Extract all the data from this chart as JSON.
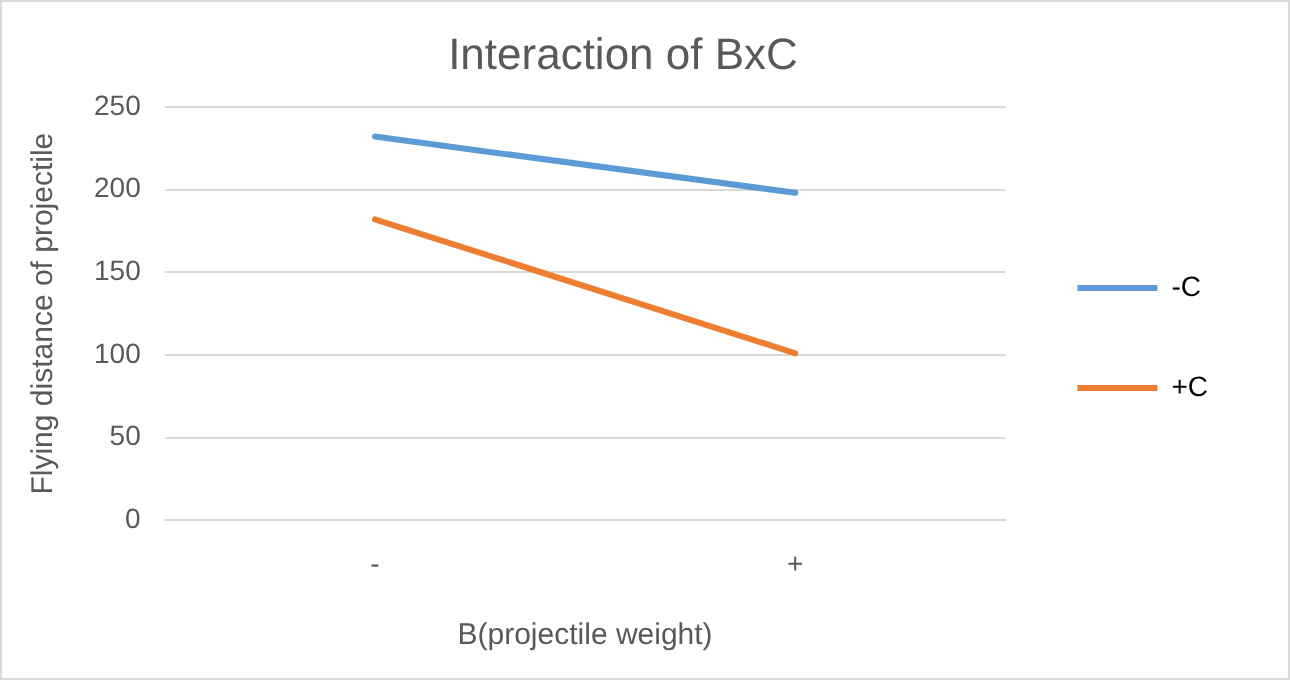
{
  "chart_data": {
    "type": "line",
    "title": "Interaction of BxC",
    "xlabel": "B(projectile weight)",
    "ylabel": "Flying distance of projectile",
    "categories": [
      "-",
      "+"
    ],
    "series": [
      {
        "name": "-C",
        "color": "#5b9bd5",
        "values": [
          232,
          198
        ]
      },
      {
        "name": "+C",
        "color": "#ed7d31",
        "values": [
          182,
          101
        ]
      }
    ],
    "ylim": [
      0,
      250
    ],
    "yticks": [
      0,
      50,
      100,
      150,
      200,
      250
    ],
    "grid": "y",
    "legend": "right",
    "marker": "none",
    "line_style": "solid"
  }
}
